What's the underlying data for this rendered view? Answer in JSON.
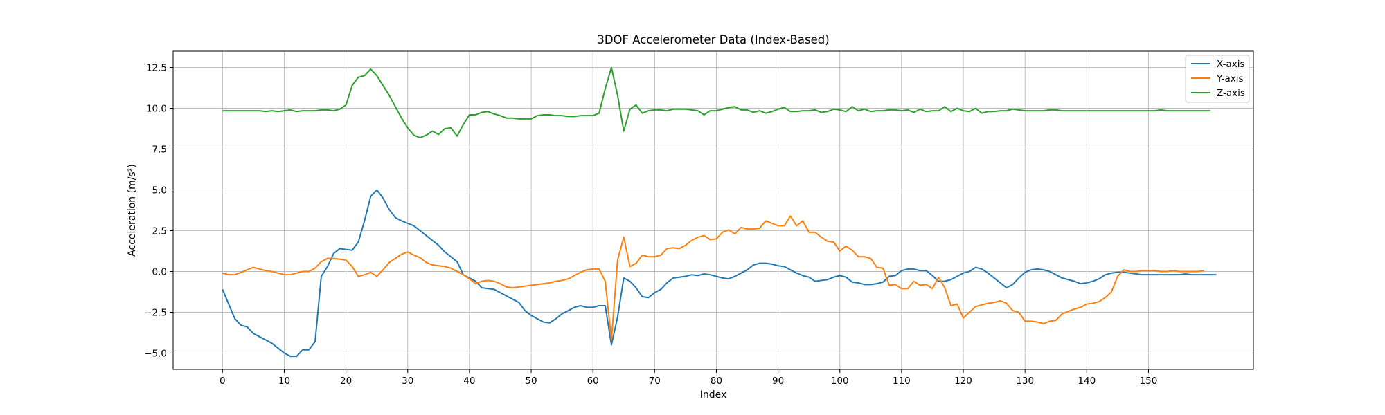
{
  "chart_data": {
    "type": "line",
    "title": "3DOF Accelerometer Data (Index-Based)",
    "xlabel": "Index",
    "ylabel": "Acceleration (m/s²)",
    "xlim": [
      -8,
      167
    ],
    "ylim": [
      -6.0,
      13.5
    ],
    "xticks": [
      0,
      10,
      20,
      30,
      40,
      50,
      60,
      70,
      80,
      90,
      100,
      110,
      120,
      130,
      140,
      150
    ],
    "yticks": [
      -5.0,
      -2.5,
      0.0,
      2.5,
      5.0,
      7.5,
      10.0,
      12.5
    ],
    "ytick_labels": [
      "−5.0",
      "−2.5",
      "0.0",
      "2.5",
      "5.0",
      "7.5",
      "10.0",
      "12.5"
    ],
    "grid": true,
    "legend_position": "top-right",
    "series": [
      {
        "name": "X-axis",
        "color": "#1f77b4",
        "values": [
          -1.1,
          -2.0,
          -2.9,
          -3.3,
          -3.4,
          -3.8,
          -4.0,
          -4.2,
          -4.4,
          -4.7,
          -5.0,
          -5.2,
          -5.2,
          -4.8,
          -4.8,
          -4.3,
          -0.3,
          0.3,
          1.1,
          1.4,
          1.35,
          1.3,
          1.8,
          3.1,
          4.6,
          5.0,
          4.5,
          3.8,
          3.3,
          3.1,
          2.95,
          2.8,
          2.5,
          2.2,
          1.9,
          1.6,
          1.2,
          0.9,
          0.6,
          -0.2,
          -0.4,
          -0.6,
          -1.0,
          -1.05,
          -1.1,
          -1.3,
          -1.5,
          -1.7,
          -1.9,
          -2.4,
          -2.7,
          -2.9,
          -3.1,
          -3.15,
          -2.9,
          -2.6,
          -2.4,
          -2.2,
          -2.1,
          -2.2,
          -2.2,
          -2.1,
          -2.1,
          -4.5,
          -2.8,
          -0.4,
          -0.6,
          -1.0,
          -1.55,
          -1.6,
          -1.3,
          -1.1,
          -0.7,
          -0.4,
          -0.35,
          -0.3,
          -0.2,
          -0.25,
          -0.15,
          -0.2,
          -0.3,
          -0.4,
          -0.45,
          -0.3,
          -0.1,
          0.1,
          0.4,
          0.5,
          0.5,
          0.45,
          0.35,
          0.3,
          0.1,
          -0.1,
          -0.25,
          -0.35,
          -0.6,
          -0.55,
          -0.5,
          -0.35,
          -0.25,
          -0.35,
          -0.65,
          -0.7,
          -0.8,
          -0.8,
          -0.75,
          -0.65,
          -0.3,
          -0.25,
          0.05,
          0.15,
          0.15,
          0.05,
          0.05,
          -0.25,
          -0.6,
          -0.6,
          -0.5,
          -0.3,
          -0.1,
          0.0,
          0.25,
          0.15,
          -0.1,
          -0.4,
          -0.7,
          -1.0,
          -0.8,
          -0.4,
          -0.05,
          0.1,
          0.15,
          0.1,
          0.0,
          -0.2,
          -0.4,
          -0.5,
          -0.6,
          -0.75,
          -0.7,
          -0.6,
          -0.45,
          -0.2,
          -0.1,
          -0.05,
          -0.05,
          -0.1,
          -0.15,
          -0.2,
          -0.2,
          -0.2,
          -0.2,
          -0.2,
          -0.2,
          -0.2,
          -0.15,
          -0.2,
          -0.2,
          -0.2,
          -0.2,
          -0.2
        ]
      },
      {
        "name": "Y-axis",
        "color": "#ff7f0e",
        "values": [
          -0.1,
          -0.2,
          -0.2,
          -0.05,
          0.1,
          0.25,
          0.15,
          0.05,
          0.0,
          -0.1,
          -0.2,
          -0.2,
          -0.1,
          0.0,
          0.0,
          0.2,
          0.6,
          0.8,
          0.8,
          0.75,
          0.7,
          0.3,
          -0.3,
          -0.2,
          -0.05,
          -0.3,
          0.1,
          0.55,
          0.8,
          1.05,
          1.2,
          1.0,
          0.85,
          0.55,
          0.4,
          0.35,
          0.3,
          0.2,
          0.0,
          -0.2,
          -0.45,
          -0.75,
          -0.6,
          -0.55,
          -0.6,
          -0.75,
          -0.95,
          -1.0,
          -0.95,
          -0.9,
          -0.85,
          -0.8,
          -0.75,
          -0.7,
          -0.6,
          -0.55,
          -0.45,
          -0.25,
          -0.05,
          0.1,
          0.15,
          0.15,
          -0.6,
          -4.2,
          0.7,
          2.1,
          0.3,
          0.5,
          1.0,
          0.9,
          0.9,
          1.0,
          1.4,
          1.45,
          1.4,
          1.6,
          1.9,
          2.1,
          2.2,
          1.95,
          2.0,
          2.4,
          2.55,
          2.3,
          2.7,
          2.6,
          2.6,
          2.65,
          3.1,
          2.95,
          2.8,
          2.8,
          3.4,
          2.8,
          3.1,
          2.4,
          2.4,
          2.1,
          1.85,
          1.8,
          1.25,
          1.55,
          1.3,
          0.9,
          0.9,
          0.8,
          0.25,
          0.2,
          -0.85,
          -0.8,
          -1.05,
          -1.05,
          -0.6,
          -0.85,
          -0.8,
          -1.05,
          -0.35,
          -1.0,
          -2.1,
          -2.0,
          -2.85,
          -2.5,
          -2.15,
          -2.05,
          -1.95,
          -1.9,
          -1.8,
          -1.95,
          -2.4,
          -2.5,
          -3.05,
          -3.05,
          -3.1,
          -3.2,
          -3.05,
          -3.0,
          -2.6,
          -2.45,
          -2.3,
          -2.2,
          -2.0,
          -1.95,
          -1.85,
          -1.6,
          -1.25,
          -0.3,
          0.1,
          0.0,
          0.0,
          0.05,
          0.05,
          0.05,
          0.0,
          0.0,
          0.05,
          0.0,
          0.0,
          0.0,
          0.0,
          0.05
        ]
      },
      {
        "name": "Z-axis",
        "color": "#2ca02c",
        "values": [
          9.85,
          9.85,
          9.85,
          9.85,
          9.85,
          9.85,
          9.85,
          9.8,
          9.85,
          9.8,
          9.85,
          9.9,
          9.8,
          9.85,
          9.85,
          9.85,
          9.9,
          9.9,
          9.85,
          9.95,
          10.2,
          11.4,
          11.9,
          12.0,
          12.4,
          12.0,
          11.4,
          10.8,
          10.1,
          9.4,
          8.8,
          8.35,
          8.2,
          8.35,
          8.6,
          8.4,
          8.75,
          8.8,
          8.3,
          9.0,
          9.6,
          9.6,
          9.75,
          9.8,
          9.65,
          9.55,
          9.4,
          9.4,
          9.35,
          9.35,
          9.35,
          9.55,
          9.6,
          9.6,
          9.55,
          9.55,
          9.5,
          9.5,
          9.55,
          9.55,
          9.55,
          9.7,
          11.2,
          12.5,
          10.8,
          8.6,
          9.95,
          10.2,
          9.7,
          9.85,
          9.9,
          9.9,
          9.85,
          9.95,
          9.95,
          9.95,
          9.9,
          9.85,
          9.6,
          9.85,
          9.85,
          9.95,
          10.05,
          10.1,
          9.9,
          9.9,
          9.75,
          9.85,
          9.7,
          9.8,
          9.95,
          10.05,
          9.8,
          9.8,
          9.85,
          9.85,
          9.9,
          9.75,
          9.8,
          9.95,
          9.9,
          9.8,
          10.1,
          9.85,
          9.95,
          9.8,
          9.85,
          9.85,
          9.9,
          9.9,
          9.85,
          9.9,
          9.75,
          9.95,
          9.8,
          9.85,
          9.85,
          10.1,
          9.8,
          10.0,
          9.85,
          9.8,
          10.0,
          9.7,
          9.8,
          9.8,
          9.85,
          9.85,
          9.95,
          9.9,
          9.85,
          9.85,
          9.85,
          9.85,
          9.9,
          9.9,
          9.85,
          9.85,
          9.85,
          9.85,
          9.85,
          9.85,
          9.85,
          9.85,
          9.85,
          9.85,
          9.85,
          9.85,
          9.85,
          9.85,
          9.85,
          9.85,
          9.9,
          9.85,
          9.85,
          9.85,
          9.85,
          9.85,
          9.85,
          9.85,
          9.85
        ]
      }
    ]
  }
}
